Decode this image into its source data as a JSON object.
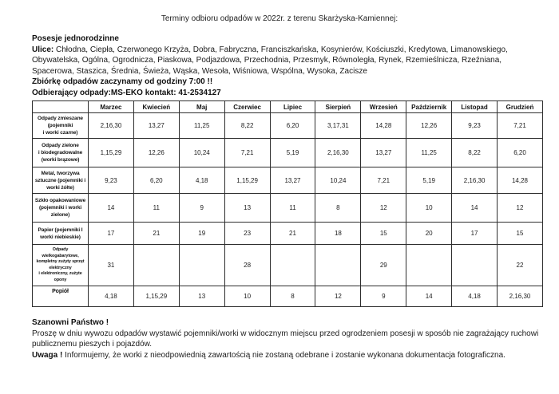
{
  "page": {
    "title": "Terminy odbioru odpadów w 2022r. z terenu Skarżyska-Kamiennej:"
  },
  "intro": {
    "heading": "Posesje jednorodzinne",
    "streets_label": "Ulice:",
    "streets_text": "Chłodna, Ciepła, Czerwonego Krzyża, Dobra, Fabryczna, Franciszkańska, Kosynierów, Kościuszki, Kredytowa, Limanowskiego, Obywatelska, Ogólna, Ogrodnicza, Piaskowa, Podjazdowa, Przechodnia, Przesmyk, Równoległa, Rynek, Rzemieślnicza, Rzeźniana, Spacerowa, Staszica, Średnia, Świeża, Wąska, Wesoła, Wiśniowa, Wspólna, Wysoka, Zacisze",
    "collection_time": "Zbiórkę odpadów zaczynamy od godziny 7:00 !!",
    "collector": "Odbierający odpady:MS-EKO kontakt: 41-2534127"
  },
  "table": {
    "months": [
      "Marzec",
      "Kwiecień",
      "Maj",
      "Czerwiec",
      "Lipiec",
      "Sierpień",
      "Wrzesień",
      "Październik",
      "Listopad",
      "Grudzień"
    ],
    "rows": [
      {
        "label": "Odpady zmieszane\n(pojemniki\ni worki czarne)",
        "values": [
          "2,16,30",
          "13,27",
          "11,25",
          "8,22",
          "6,20",
          "3,17,31",
          "14,28",
          "12,26",
          "9,23",
          "7,21"
        ]
      },
      {
        "label": "Odpady zielone\ni biodegradowalne\n(worki brązowe)",
        "values": [
          "1,15,29",
          "12,26",
          "10,24",
          "7,21",
          "5,19",
          "2,16,30",
          "13,27",
          "11,25",
          "8,22",
          "6,20"
        ]
      },
      {
        "label": "Metal, tworzywa\nsztuczne (pojemniki i\nworki żółte)",
        "values": [
          "9,23",
          "6,20",
          "4,18",
          "1,15,29",
          "13,27",
          "10,24",
          "7,21",
          "5,19",
          "2,16,30",
          "14,28"
        ]
      },
      {
        "label": "Szkło opakowaniowe\n(pojemniki i worki\nzielone)",
        "values": [
          "14",
          "11",
          "9",
          "13",
          "11",
          "8",
          "12",
          "10",
          "14",
          "12"
        ]
      },
      {
        "label": "Papier (pojemniki I\nworki niebieskie)",
        "values": [
          "17",
          "21",
          "19",
          "23",
          "21",
          "18",
          "15",
          "20",
          "17",
          "15"
        ]
      },
      {
        "label": "Odpady\nwielkogabarytowe,\nkompletny zużyty sprzęt\nelektryczny\ni elektroniczny, zużyte\nopony",
        "values": [
          "31",
          "",
          "",
          "28",
          "",
          "",
          "29",
          "",
          "",
          "22"
        ]
      },
      {
        "label": "Popiół",
        "values": [
          "4,18",
          "1,15,29",
          "13",
          "10",
          "8",
          "12",
          "9",
          "14",
          "4,18",
          "2,16,30"
        ]
      }
    ]
  },
  "footer": {
    "salutation": "Szanowni Państwo !",
    "instructions": "Proszę w dniu wywozu odpadów wystawić pojemniki/worki w widocznym miejscu przed ogrodzeniem posesji w sposób nie zagrażający ruchowi publicznemu pieszych i pojazdów.",
    "warning_label": "Uwaga !",
    "warning_text": " Informujemy, że worki z nieodpowiednią zawartością nie zostaną odebrane i zostanie wykonana dokumentacja fotograficzna."
  }
}
